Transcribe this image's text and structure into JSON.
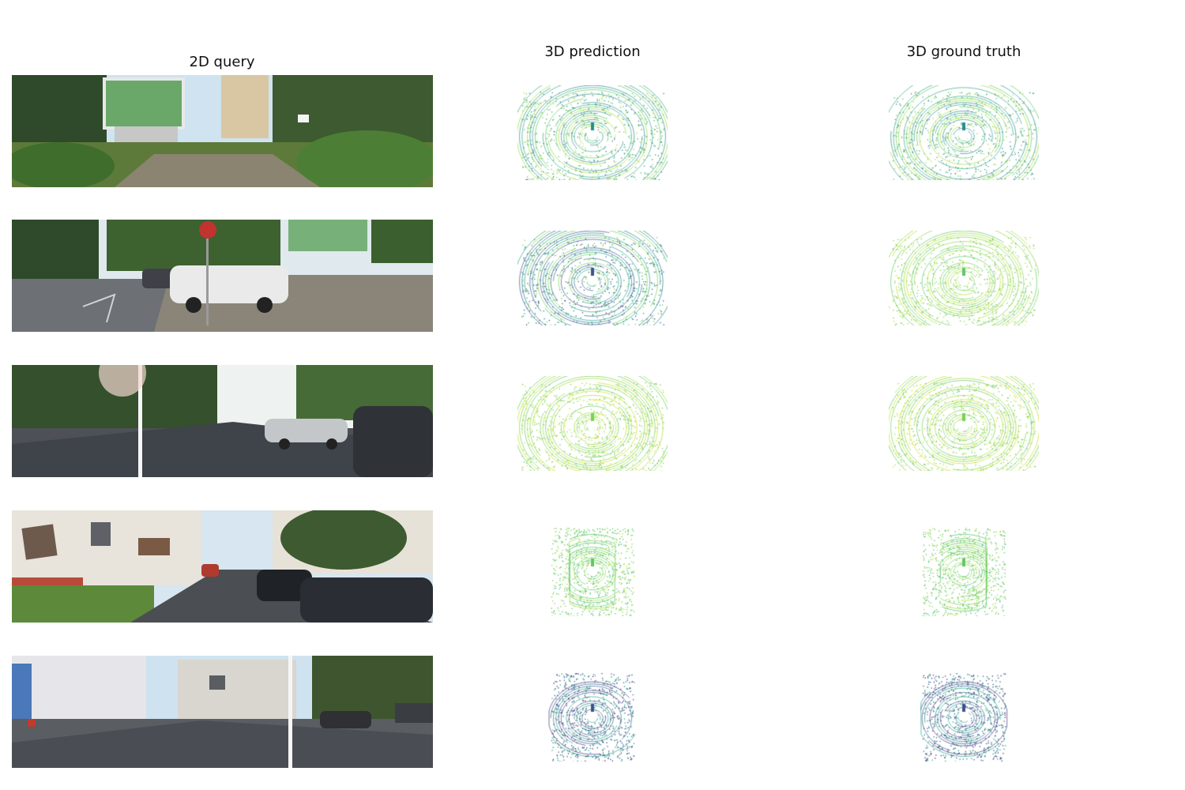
{
  "titles": {
    "query": "2D query",
    "prediction": "3D prediction",
    "ground_truth": "3D ground truth"
  },
  "rows": [
    {
      "scene": "billboard-lawn",
      "pred_colors": [
        "#2a8a8b",
        "#34a688",
        "#5dc863",
        "#9fda3a"
      ],
      "gt_colors": [
        "#2a8a8b",
        "#34a688",
        "#5dc863",
        "#9fda3a"
      ]
    },
    {
      "scene": "parked-cars-billboard",
      "pred_colors": [
        "#3b528b",
        "#2a788e",
        "#22a884",
        "#7ad151"
      ],
      "gt_colors": [
        "#5dc863",
        "#8fd744",
        "#b5de2b",
        "#7ad151"
      ]
    },
    {
      "scene": "tree-lined-road",
      "pred_colors": [
        "#7ad151",
        "#a0da39",
        "#5dc863",
        "#c8e020"
      ],
      "gt_colors": [
        "#7ad151",
        "#a0da39",
        "#5dc863",
        "#c8e020"
      ]
    },
    {
      "scene": "residential-street",
      "pred_colors": [
        "#5dc863",
        "#7ad151",
        "#44bf70",
        "#a0da39"
      ],
      "gt_colors": [
        "#5dc863",
        "#7ad151",
        "#44bf70",
        "#a0da39"
      ]
    },
    {
      "scene": "houses-street",
      "pred_colors": [
        "#3b528b",
        "#2a788e",
        "#22a884",
        "#46337e"
      ],
      "gt_colors": [
        "#3b528b",
        "#2a788e",
        "#22a884",
        "#46337e"
      ]
    }
  ]
}
